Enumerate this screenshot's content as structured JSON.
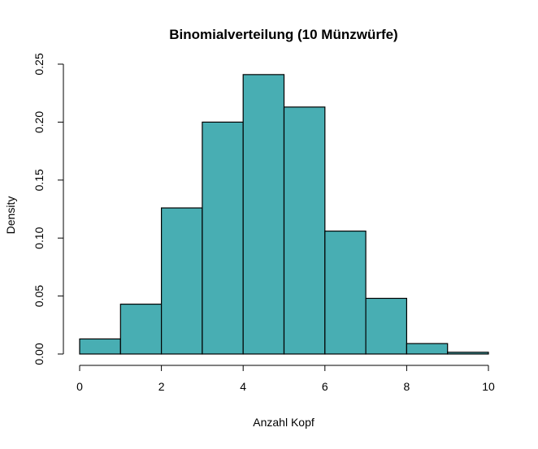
{
  "chart_data": {
    "type": "bar",
    "title": "Binomialverteilung (10 Münzwürfe)",
    "xlabel": "Anzahl Kopf",
    "ylabel": "Density",
    "bin_edges": [
      0,
      1,
      2,
      3,
      4,
      5,
      6,
      7,
      8,
      9,
      10
    ],
    "values": [
      0.013,
      0.043,
      0.126,
      0.2,
      0.241,
      0.213,
      0.106,
      0.048,
      0.009,
      0.0015
    ],
    "xlim": [
      0,
      10
    ],
    "ylim": [
      0,
      0.25
    ],
    "x_ticks": [
      "0",
      "2",
      "4",
      "6",
      "8",
      "10"
    ],
    "x_tick_values": [
      0,
      2,
      4,
      6,
      8,
      10
    ],
    "y_ticks": [
      "0.00",
      "0.05",
      "0.10",
      "0.15",
      "0.20",
      "0.25"
    ],
    "y_tick_values": [
      0,
      0.05,
      0.1,
      0.15,
      0.2,
      0.25
    ],
    "bar_color": "#48AEB3",
    "grid": false
  }
}
